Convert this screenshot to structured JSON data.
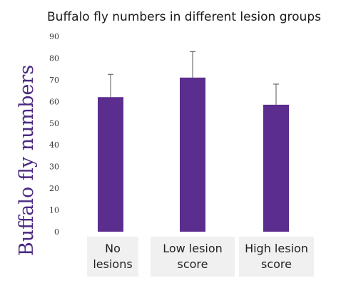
{
  "chart_data": {
    "type": "bar",
    "title": "Buffalo fly numbers in different lesion groups",
    "xlabel": "",
    "ylabel": "Buffalo fly numbers",
    "ylim": [
      0,
      90
    ],
    "yticks": [
      0,
      10,
      20,
      30,
      40,
      50,
      60,
      70,
      80,
      90
    ],
    "categories": [
      [
        "No",
        "lesions"
      ],
      [
        "Low lesion",
        "score"
      ],
      [
        "High lesion",
        "score"
      ]
    ],
    "values": [
      62,
      71,
      58.5
    ],
    "error_upper": [
      72.5,
      83,
      68
    ],
    "grid": false,
    "legend": "none",
    "colors": {
      "bar": "#5b2d8e",
      "error": "#555555",
      "category_box": "#f0f0f0"
    }
  }
}
